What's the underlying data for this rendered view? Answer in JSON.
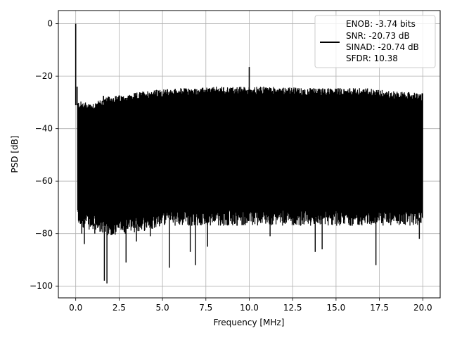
{
  "chart_data": {
    "type": "line",
    "title": "",
    "xlabel": "Frequency [MHz]",
    "ylabel": "PSD [dB]",
    "xlim": [
      -1.0,
      21.0
    ],
    "ylim": [
      -104.5,
      5.0
    ],
    "xticks": [
      0.0,
      2.5,
      5.0,
      7.5,
      10.0,
      12.5,
      15.0,
      17.5,
      20.0
    ],
    "xtick_labels": [
      "0.0",
      "2.5",
      "5.0",
      "7.5",
      "10.0",
      "12.5",
      "15.0",
      "17.5",
      "20.0"
    ],
    "yticks": [
      0,
      -20,
      -40,
      -60,
      -80,
      -100
    ],
    "ytick_labels": [
      "0",
      "−20",
      "−40",
      "−60",
      "−80",
      "−100"
    ],
    "grid": true,
    "legend_position": "top-right",
    "line_color": "#000000",
    "legend_entries": [
      "ENOB: -3.74 bits",
      "SNR: -20.73 dB",
      "SINAD: -20.74 dB",
      "SFDR: 10.38"
    ],
    "series": [
      {
        "noise_floor": {
          "x": [
            0.1,
            1.0,
            2.0,
            3.0,
            4.0,
            5.0,
            6.0,
            7.0,
            8.0,
            9.0,
            10.0,
            11.0,
            12.0,
            13.0,
            14.0,
            15.0,
            16.0,
            17.0,
            18.0,
            19.0,
            20.0
          ],
          "top": [
            -31,
            -31.5,
            -29,
            -28.5,
            -27,
            -26.5,
            -26,
            -26,
            -25.5,
            -25.5,
            -25.5,
            -25.5,
            -25.5,
            -26,
            -26,
            -26,
            -26,
            -26,
            -27,
            -27.5,
            -28
          ],
          "bottom": [
            -74,
            -76,
            -78,
            -77,
            -76,
            -74,
            -74,
            -74,
            -74,
            -74,
            -74,
            -74,
            -74,
            -74,
            -74,
            -74,
            -74,
            -74,
            -74,
            -74,
            -74
          ]
        },
        "spikes": [
          {
            "x": 0.0,
            "y": 0.0
          },
          {
            "x": 0.08,
            "y": -24.0
          },
          {
            "x": 1.6,
            "y": -27.5
          },
          {
            "x": 10.0,
            "y": -16.5
          }
        ],
        "dips": [
          {
            "x": 0.35,
            "y": -80
          },
          {
            "x": 0.5,
            "y": -84
          },
          {
            "x": 1.1,
            "y": -80
          },
          {
            "x": 1.65,
            "y": -98
          },
          {
            "x": 1.8,
            "y": -99
          },
          {
            "x": 2.1,
            "y": -80
          },
          {
            "x": 2.9,
            "y": -91
          },
          {
            "x": 3.5,
            "y": -83
          },
          {
            "x": 4.3,
            "y": -81
          },
          {
            "x": 5.4,
            "y": -93
          },
          {
            "x": 6.9,
            "y": -92
          },
          {
            "x": 6.6,
            "y": -87
          },
          {
            "x": 7.6,
            "y": -85
          },
          {
            "x": 11.2,
            "y": -81
          },
          {
            "x": 13.8,
            "y": -87
          },
          {
            "x": 14.2,
            "y": -86
          },
          {
            "x": 17.3,
            "y": -92
          },
          {
            "x": 19.8,
            "y": -82
          }
        ]
      }
    ]
  }
}
